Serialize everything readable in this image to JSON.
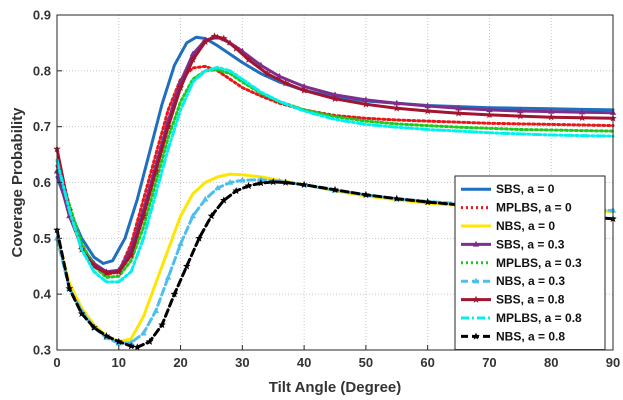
{
  "chart_data": {
    "type": "line",
    "title": "",
    "xlabel": "Tilt Angle (Degree)",
    "ylabel": "Coverage Probability",
    "xlim": [
      0,
      90
    ],
    "ylim": [
      0.3,
      0.9
    ],
    "xticks": [
      "0",
      "10",
      "20",
      "30",
      "40",
      "50",
      "60",
      "70",
      "80",
      "90"
    ],
    "yticks": [
      "0.3",
      "0.4",
      "0.5",
      "0.6",
      "0.7",
      "0.8",
      "0.9"
    ],
    "grid": true,
    "legend_position": "lower-right",
    "series": [
      {
        "name": "SBS, a = 0",
        "color": "#1f6fbf",
        "style": "solid",
        "marker": "none",
        "x": [
          0,
          2,
          4,
          6,
          7.5,
          9,
          11,
          13,
          15,
          17,
          19,
          21,
          22.5,
          24,
          26,
          28,
          30,
          33,
          36,
          40,
          45,
          50,
          55,
          60,
          65,
          70,
          75,
          80,
          85,
          90
        ],
        "y": [
          0.61,
          0.55,
          0.5,
          0.466,
          0.455,
          0.46,
          0.5,
          0.57,
          0.655,
          0.74,
          0.81,
          0.85,
          0.86,
          0.858,
          0.845,
          0.83,
          0.815,
          0.795,
          0.78,
          0.765,
          0.753,
          0.746,
          0.742,
          0.738,
          0.736,
          0.734,
          0.733,
          0.732,
          0.731,
          0.73
        ]
      },
      {
        "name": "MPLBS, a = 0",
        "color": "#e8171a",
        "style": "dotted",
        "marker": "none",
        "x": [
          0,
          2,
          4,
          6,
          8,
          10,
          12,
          14,
          16,
          18,
          20,
          22,
          24,
          26,
          28,
          30,
          33,
          36,
          40,
          45,
          50,
          55,
          60,
          65,
          70,
          75,
          80,
          85,
          90
        ],
        "y": [
          0.63,
          0.55,
          0.49,
          0.45,
          0.435,
          0.44,
          0.49,
          0.57,
          0.65,
          0.73,
          0.785,
          0.805,
          0.808,
          0.8,
          0.785,
          0.77,
          0.755,
          0.742,
          0.73,
          0.72,
          0.715,
          0.712,
          0.71,
          0.708,
          0.706,
          0.705,
          0.704,
          0.703,
          0.702
        ]
      },
      {
        "name": "NBS, a = 0",
        "color": "#ffe600",
        "style": "solid",
        "marker": "none",
        "x": [
          0,
          2,
          4,
          6,
          8,
          10,
          12,
          14,
          16,
          18,
          20,
          22,
          24,
          26,
          28,
          30,
          33,
          36,
          40,
          45,
          50,
          55,
          60,
          65,
          70,
          75,
          80,
          85,
          90
        ],
        "y": [
          0.5,
          0.42,
          0.375,
          0.345,
          0.325,
          0.315,
          0.32,
          0.36,
          0.42,
          0.48,
          0.54,
          0.58,
          0.6,
          0.61,
          0.615,
          0.614,
          0.61,
          0.604,
          0.596,
          0.585,
          0.576,
          0.569,
          0.563,
          0.559,
          0.556,
          0.553,
          0.551,
          0.549,
          0.548
        ]
      },
      {
        "name": "SBS, a = 0.3",
        "color": "#7e2f8e",
        "style": "solid",
        "marker": "triangle",
        "x": [
          0,
          2,
          4,
          6,
          8,
          10,
          12,
          14,
          16,
          18,
          20,
          22,
          24,
          26,
          28,
          30,
          33,
          36,
          40,
          45,
          50,
          55,
          60,
          65,
          70,
          75,
          80,
          85,
          90
        ],
        "y": [
          0.62,
          0.54,
          0.485,
          0.455,
          0.44,
          0.443,
          0.48,
          0.55,
          0.63,
          0.71,
          0.78,
          0.83,
          0.855,
          0.86,
          0.85,
          0.835,
          0.81,
          0.79,
          0.772,
          0.757,
          0.748,
          0.742,
          0.737,
          0.733,
          0.73,
          0.728,
          0.727,
          0.726,
          0.725
        ]
      },
      {
        "name": "MPLBS, a = 0.3",
        "color": "#1ec91e",
        "style": "dotted",
        "marker": "none",
        "x": [
          0,
          2,
          4,
          6,
          8,
          10,
          12,
          14,
          16,
          18,
          20,
          22,
          24,
          26,
          28,
          30,
          33,
          36,
          40,
          45,
          50,
          55,
          60,
          65,
          70,
          75,
          80,
          85,
          90
        ],
        "y": [
          0.64,
          0.56,
          0.49,
          0.45,
          0.43,
          0.432,
          0.46,
          0.52,
          0.6,
          0.68,
          0.745,
          0.785,
          0.8,
          0.802,
          0.795,
          0.78,
          0.76,
          0.745,
          0.73,
          0.718,
          0.71,
          0.705,
          0.702,
          0.699,
          0.697,
          0.695,
          0.694,
          0.693,
          0.692
        ]
      },
      {
        "name": "NBS, a = 0.3",
        "color": "#4dbeee",
        "style": "dashed",
        "marker": "triangle",
        "x": [
          0,
          2,
          4,
          6,
          8,
          10,
          12,
          14,
          16,
          18,
          20,
          22,
          24,
          26,
          28,
          30,
          33,
          36,
          40,
          45,
          50,
          55,
          60,
          65,
          70,
          75,
          80,
          85,
          90
        ],
        "y": [
          0.5,
          0.41,
          0.37,
          0.34,
          0.322,
          0.312,
          0.313,
          0.33,
          0.37,
          0.43,
          0.49,
          0.54,
          0.57,
          0.59,
          0.6,
          0.604,
          0.605,
          0.602,
          0.596,
          0.586,
          0.578,
          0.571,
          0.566,
          0.562,
          0.558,
          0.555,
          0.553,
          0.551,
          0.55
        ]
      },
      {
        "name": "SBS, a = 0.8",
        "color": "#a2142f",
        "style": "solid",
        "marker": "star",
        "x": [
          0,
          2,
          4,
          6,
          8,
          10,
          12,
          14,
          16,
          18,
          20,
          22,
          24,
          25.5,
          27,
          29,
          31,
          34,
          37,
          40,
          45,
          50,
          55,
          60,
          65,
          70,
          75,
          80,
          85,
          90
        ],
        "y": [
          0.66,
          0.55,
          0.48,
          0.45,
          0.438,
          0.44,
          0.47,
          0.54,
          0.62,
          0.7,
          0.77,
          0.82,
          0.852,
          0.862,
          0.858,
          0.84,
          0.82,
          0.795,
          0.778,
          0.765,
          0.75,
          0.74,
          0.733,
          0.728,
          0.724,
          0.721,
          0.719,
          0.717,
          0.716,
          0.715
        ]
      },
      {
        "name": "MPLBS, a = 0.8",
        "color": "#00f0f0",
        "style": "dashdot",
        "marker": "none",
        "x": [
          0,
          2,
          4,
          6,
          8,
          10,
          12,
          14,
          16,
          18,
          20,
          22,
          24,
          26,
          28,
          30,
          33,
          36,
          40,
          45,
          50,
          55,
          60,
          65,
          70,
          75,
          80,
          85,
          90
        ],
        "y": [
          0.64,
          0.55,
          0.48,
          0.44,
          0.422,
          0.422,
          0.44,
          0.5,
          0.58,
          0.66,
          0.73,
          0.78,
          0.8,
          0.806,
          0.8,
          0.785,
          0.762,
          0.745,
          0.728,
          0.713,
          0.704,
          0.699,
          0.695,
          0.692,
          0.689,
          0.687,
          0.685,
          0.684,
          0.683
        ]
      },
      {
        "name": "NBS, a = 0.8",
        "color": "#000000",
        "style": "dashed",
        "marker": "star",
        "x": [
          0,
          2,
          4,
          6,
          8,
          10,
          12,
          13,
          15,
          17,
          19,
          21,
          23,
          25,
          27,
          29,
          31,
          33,
          35,
          37,
          40,
          45,
          50,
          55,
          60,
          65,
          70,
          75,
          80,
          85,
          90
        ],
        "y": [
          0.515,
          0.41,
          0.365,
          0.34,
          0.325,
          0.315,
          0.307,
          0.305,
          0.315,
          0.345,
          0.4,
          0.45,
          0.5,
          0.54,
          0.568,
          0.585,
          0.594,
          0.599,
          0.601,
          0.6,
          0.596,
          0.587,
          0.578,
          0.571,
          0.565,
          0.56,
          0.555,
          0.549,
          0.544,
          0.539,
          0.535
        ]
      }
    ]
  }
}
